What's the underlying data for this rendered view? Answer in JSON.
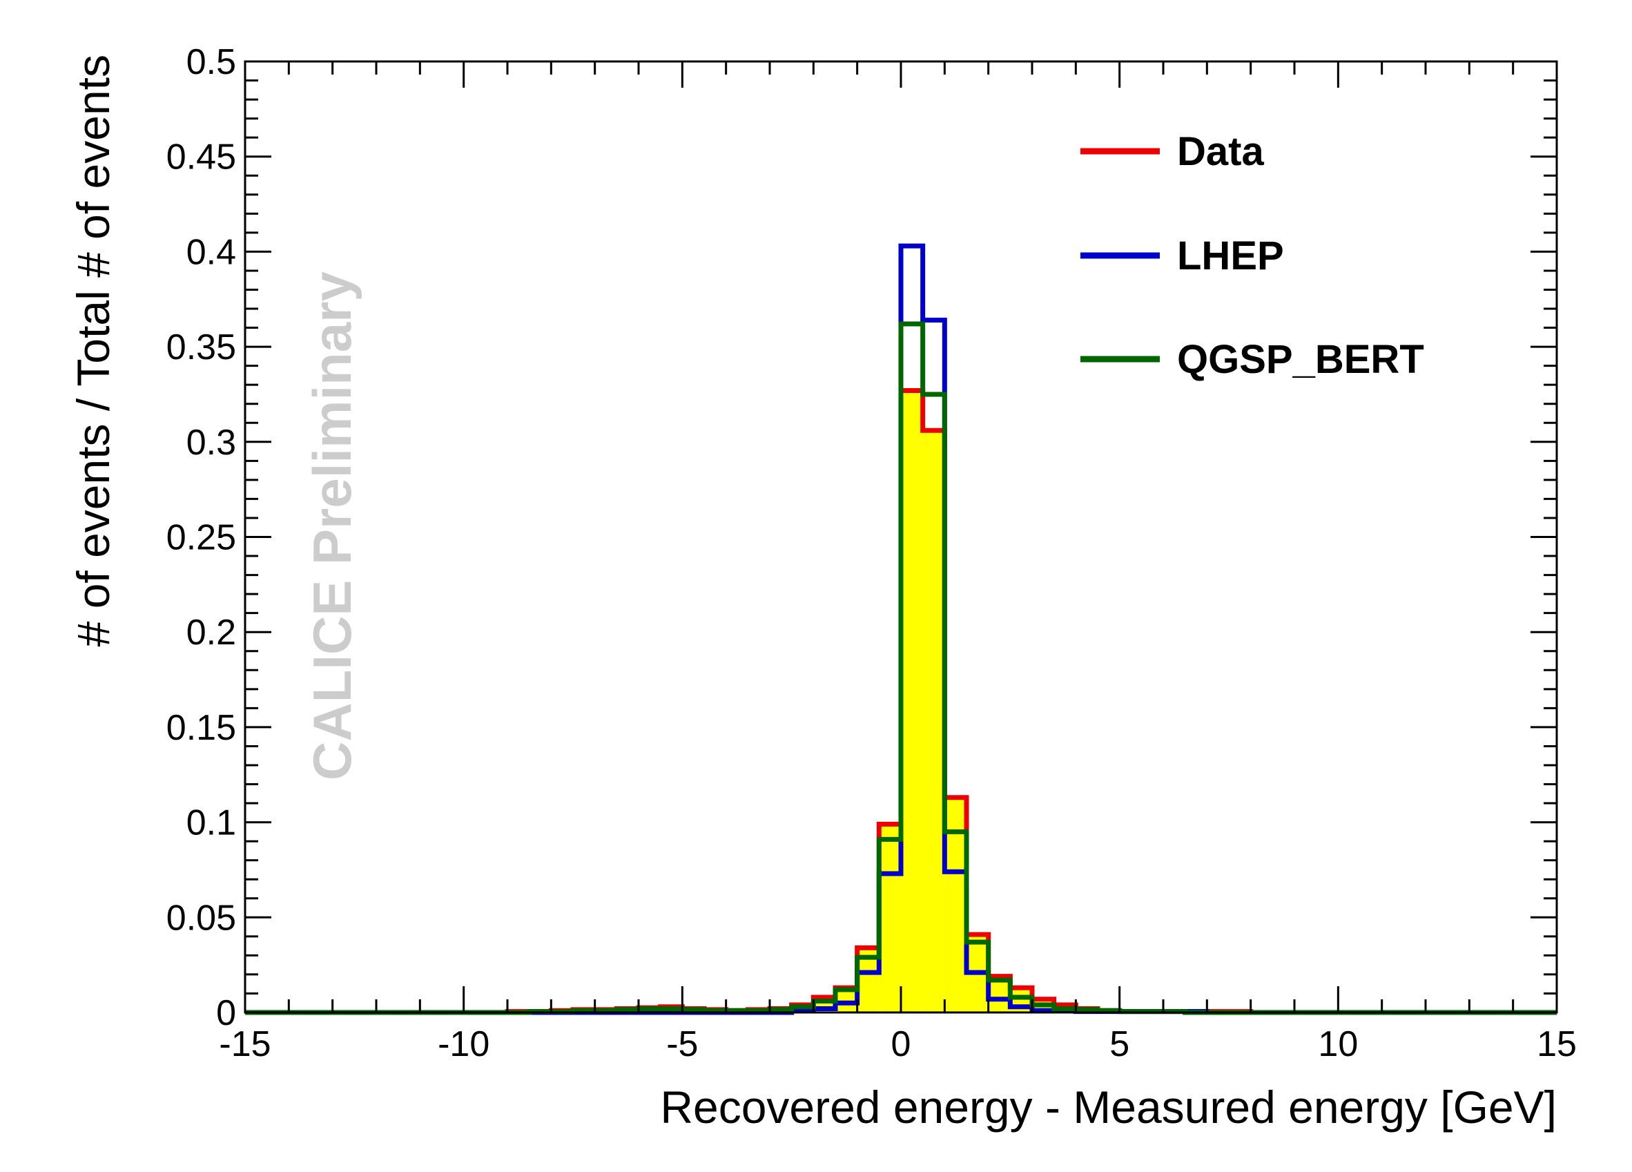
{
  "chart_data": {
    "type": "histogram",
    "xlabel": "Recovered  energy - Measured  energy [GeV]",
    "ylabel": "# of events / Total # of events",
    "xlim": [
      -15,
      15
    ],
    "ylim": [
      0,
      0.5
    ],
    "x_ticks": [
      -15,
      -10,
      -5,
      0,
      5,
      10,
      15
    ],
    "y_ticks": [
      0,
      0.05,
      0.1,
      0.15,
      0.2,
      0.25,
      0.3,
      0.35,
      0.4,
      0.45,
      0.5
    ],
    "watermark": "CALICE Preliminary",
    "colors": {
      "Data": "#ee0000",
      "LHEP": "#0000cc",
      "QGSP_BERT": "#006600",
      "fill": "#ffff00"
    },
    "legend": {
      "position": "top-right",
      "entries": [
        "Data",
        "LHEP",
        "QGSP_BERT"
      ]
    },
    "bin_edges": [
      -15,
      -14.5,
      -14,
      -13.5,
      -13,
      -12.5,
      -12,
      -11.5,
      -11,
      -10.5,
      -10,
      -9.5,
      -9,
      -8.5,
      -8,
      -7.5,
      -7,
      -6.5,
      -6,
      -5.5,
      -5,
      -4.5,
      -4,
      -3.5,
      -3,
      -2.5,
      -2,
      -1.5,
      -1,
      -0.5,
      0,
      0.5,
      1,
      1.5,
      2,
      2.5,
      3,
      3.5,
      4,
      4.5,
      5,
      5.5,
      6,
      6.5,
      7,
      7.5,
      8,
      8.5,
      9,
      9.5,
      10,
      10.5,
      11,
      11.5,
      12,
      12.5,
      13,
      13.5,
      14,
      14.5,
      15
    ],
    "series": [
      {
        "name": "Data",
        "filled": true,
        "values": [
          0,
          0,
          0,
          0,
          0,
          0,
          0,
          0,
          0,
          0,
          0,
          0,
          0.0005,
          0.0005,
          0.001,
          0.0015,
          0.0015,
          0.002,
          0.0025,
          0.003,
          0.002,
          0.0015,
          0.001,
          0.0015,
          0.002,
          0.004,
          0.008,
          0.013,
          0.034,
          0.099,
          0.327,
          0.306,
          0.113,
          0.041,
          0.019,
          0.013,
          0.007,
          0.004,
          0.002,
          0.001,
          0.0005,
          0.0005,
          0.0005,
          0.0005,
          0.0005,
          0.0005,
          0,
          0,
          0,
          0,
          0,
          0,
          0,
          0,
          0,
          0,
          0,
          0,
          0,
          0
        ]
      },
      {
        "name": "LHEP",
        "filled": false,
        "values": [
          0,
          0,
          0,
          0,
          0,
          0,
          0,
          0,
          0,
          0,
          0,
          0,
          0,
          0,
          0,
          0,
          0,
          0,
          0,
          0,
          0,
          0,
          0,
          0,
          0,
          0.001,
          0.002,
          0.005,
          0.021,
          0.073,
          0.403,
          0.364,
          0.074,
          0.021,
          0.007,
          0.003,
          0.001,
          0.001,
          0.0005,
          0.0005,
          0.0005,
          0.0005,
          0.0005,
          0.0005,
          0,
          0,
          0,
          0,
          0,
          0,
          0,
          0,
          0,
          0,
          0,
          0,
          0,
          0,
          0,
          0
        ]
      },
      {
        "name": "QGSP_BERT",
        "filled": false,
        "values": [
          0,
          0,
          0,
          0,
          0,
          0,
          0,
          0,
          0,
          0,
          0,
          0,
          0,
          0.0005,
          0.0005,
          0.001,
          0.001,
          0.0015,
          0.002,
          0.002,
          0.0015,
          0.001,
          0.001,
          0.001,
          0.0015,
          0.003,
          0.006,
          0.012,
          0.029,
          0.091,
          0.362,
          0.325,
          0.095,
          0.037,
          0.017,
          0.008,
          0.004,
          0.002,
          0.0015,
          0.001,
          0.0005,
          0.0005,
          0.0005,
          0,
          0,
          0,
          0,
          0,
          0,
          0,
          0,
          0,
          0,
          0,
          0,
          0,
          0,
          0,
          0,
          0
        ]
      }
    ]
  }
}
